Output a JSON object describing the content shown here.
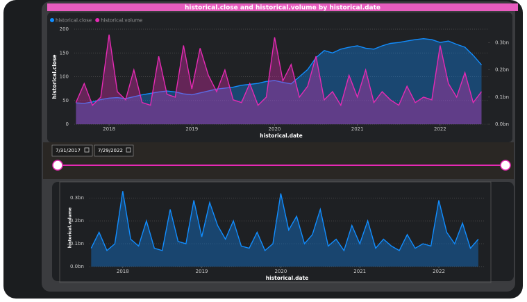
{
  "chart_data": [
    {
      "type": "area",
      "title": "historical.close and historical.volume by historical.date",
      "x_label": "historical.date",
      "y_label": "historical.close",
      "legend": "top-left",
      "grid": true,
      "x": [
        2017.6,
        2017.7,
        2017.8,
        2017.9,
        2018,
        2018.1,
        2018.2,
        2018.3,
        2018.4,
        2018.5,
        2018.6,
        2018.7,
        2018.8,
        2018.9,
        2019,
        2019.1,
        2019.2,
        2019.3,
        2019.4,
        2019.5,
        2019.6,
        2019.7,
        2019.8,
        2019.9,
        2020,
        2020.1,
        2020.2,
        2020.3,
        2020.4,
        2020.5,
        2020.6,
        2020.7,
        2020.8,
        2020.9,
        2021,
        2021.1,
        2021.2,
        2021.3,
        2021.4,
        2021.5,
        2021.6,
        2021.7,
        2021.8,
        2021.9,
        2022,
        2022.1,
        2022.2,
        2022.3,
        2022.4,
        2022.5
      ],
      "xlim": [
        2017.58,
        2022.58
      ],
      "xticks": [
        2018,
        2019,
        2020,
        2021,
        2022
      ],
      "ylim": [
        0,
        200
      ],
      "yticks": [
        0,
        50,
        100,
        150,
        200
      ],
      "y2lim": [
        0,
        0.35
      ],
      "y2ticks": [
        {
          "value": 0,
          "label": "0.0bn"
        },
        {
          "value": 0.1,
          "label": "0.1bn"
        },
        {
          "value": 0.2,
          "label": "0.2bn"
        },
        {
          "value": 0.3,
          "label": "0.3bn"
        }
      ],
      "series": [
        {
          "name": "historical.close",
          "color": "#118dff",
          "values": [
            45,
            44,
            47,
            52,
            55,
            56,
            54,
            58,
            62,
            65,
            68,
            70,
            68,
            64,
            62,
            66,
            70,
            74,
            76,
            78,
            82,
            84,
            86,
            90,
            92,
            88,
            85,
            100,
            115,
            140,
            155,
            150,
            158,
            162,
            165,
            160,
            158,
            165,
            170,
            172,
            175,
            178,
            180,
            178,
            172,
            175,
            168,
            162,
            145,
            125
          ]
        },
        {
          "name": "historical.volume",
          "color": "#e62ab4",
          "axis": "y2",
          "values": [
            0.08,
            0.15,
            0.07,
            0.1,
            0.33,
            0.12,
            0.09,
            0.2,
            0.08,
            0.07,
            0.25,
            0.11,
            0.1,
            0.29,
            0.13,
            0.28,
            0.18,
            0.12,
            0.2,
            0.09,
            0.08,
            0.15,
            0.07,
            0.1,
            0.32,
            0.16,
            0.22,
            0.1,
            0.14,
            0.25,
            0.09,
            0.12,
            0.07,
            0.18,
            0.1,
            0.2,
            0.08,
            0.12,
            0.09,
            0.07,
            0.14,
            0.08,
            0.1,
            0.09,
            0.29,
            0.15,
            0.1,
            0.19,
            0.08,
            0.12
          ]
        }
      ]
    },
    {
      "type": "area",
      "x_label": "historical.date",
      "y_label": "historical.volume",
      "grid": true,
      "x": [
        2017.6,
        2017.7,
        2017.8,
        2017.9,
        2018,
        2018.1,
        2018.2,
        2018.3,
        2018.4,
        2018.5,
        2018.6,
        2018.7,
        2018.8,
        2018.9,
        2019,
        2019.1,
        2019.2,
        2019.3,
        2019.4,
        2019.5,
        2019.6,
        2019.7,
        2019.8,
        2019.9,
        2020,
        2020.1,
        2020.2,
        2020.3,
        2020.4,
        2020.5,
        2020.6,
        2020.7,
        2020.8,
        2020.9,
        2021,
        2021.1,
        2021.2,
        2021.3,
        2021.4,
        2021.5,
        2021.6,
        2021.7,
        2021.8,
        2021.9,
        2022,
        2022.1,
        2022.2,
        2022.3,
        2022.4,
        2022.5
      ],
      "xlim": [
        2017.58,
        2022.58
      ],
      "xticks": [
        2018,
        2019,
        2020,
        2021,
        2022
      ],
      "ylim": [
        0,
        0.34
      ],
      "yticks": [
        {
          "value": 0,
          "label": "0.0bn"
        },
        {
          "value": 0.1,
          "label": "0.1bn"
        },
        {
          "value": 0.2,
          "label": "0.2bn"
        },
        {
          "value": 0.3,
          "label": "0.3bn"
        }
      ],
      "series": [
        {
          "color": "#118dff",
          "values": [
            0.08,
            0.15,
            0.07,
            0.1,
            0.33,
            0.12,
            0.09,
            0.2,
            0.08,
            0.07,
            0.25,
            0.11,
            0.1,
            0.29,
            0.13,
            0.28,
            0.18,
            0.12,
            0.2,
            0.09,
            0.08,
            0.15,
            0.07,
            0.1,
            0.32,
            0.16,
            0.22,
            0.1,
            0.14,
            0.25,
            0.09,
            0.12,
            0.07,
            0.18,
            0.1,
            0.2,
            0.08,
            0.12,
            0.09,
            0.07,
            0.14,
            0.08,
            0.1,
            0.09,
            0.29,
            0.15,
            0.1,
            0.19,
            0.08,
            0.12
          ]
        }
      ]
    }
  ],
  "slicer": {
    "start": "7/31/2017",
    "end": "7/29/2022"
  }
}
